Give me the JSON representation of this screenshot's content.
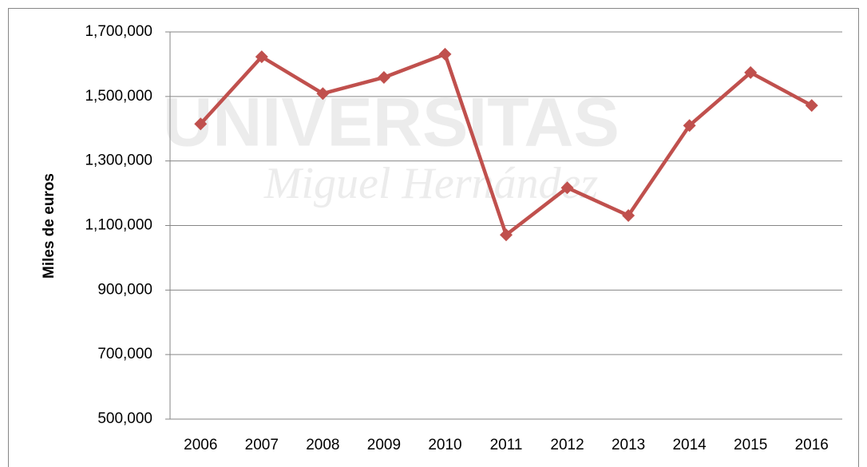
{
  "chart_data": {
    "type": "line",
    "y_label": "Miles de euros",
    "annotations": [
      "UNIVERSITAS",
      "Miguel Hernández"
    ],
    "categories": [
      "2006",
      "2007",
      "2008",
      "2009",
      "2010",
      "2011",
      "2012",
      "2013",
      "2014",
      "2015",
      "2016"
    ],
    "series": [
      {
        "name": "Miles de euros",
        "color": "#c0504d",
        "values": [
          1415000,
          1623000,
          1509000,
          1559000,
          1631000,
          1071000,
          1217000,
          1131000,
          1410000,
          1574000,
          1472000
        ]
      }
    ],
    "ylim": [
      500000,
      1700000
    ],
    "yticks": [
      {
        "value": 500000,
        "label": "500,000"
      },
      {
        "value": 700000,
        "label": "700,000"
      },
      {
        "value": 900000,
        "label": "900,000"
      },
      {
        "value": 1100000,
        "label": "1,100,000"
      },
      {
        "value": 1300000,
        "label": "1,300,000"
      },
      {
        "value": 1500000,
        "label": "1,500,000"
      },
      {
        "value": 1700000,
        "label": "1,700,000"
      }
    ],
    "grid": true
  }
}
